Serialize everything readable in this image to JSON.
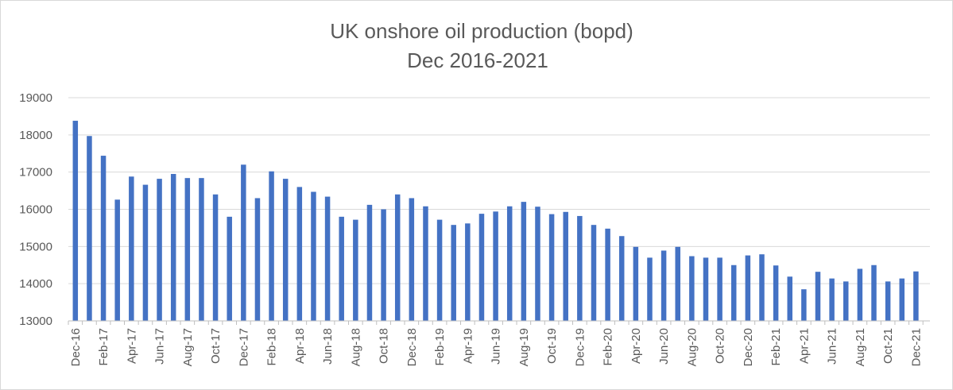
{
  "chart_data": {
    "type": "bar",
    "title": "UK onshore oil production (bopd)",
    "subtitle": "Dec 2016-2021",
    "ylim": [
      13000,
      19000
    ],
    "yticks": [
      13000,
      14000,
      15000,
      16000,
      17000,
      18000,
      19000
    ],
    "grid": true,
    "colors": {
      "bar": "#4472c4"
    },
    "categories": [
      "Dec-16",
      "Jan-17",
      "Feb-17",
      "Mar-17",
      "Apr-17",
      "May-17",
      "Jun-17",
      "Jul-17",
      "Aug-17",
      "Sep-17",
      "Oct-17",
      "Nov-17",
      "Dec-17",
      "Jan-18",
      "Feb-18",
      "Mar-18",
      "Apr-18",
      "May-18",
      "Jun-18",
      "Jul-18",
      "Aug-18",
      "Sep-18",
      "Oct-18",
      "Nov-18",
      "Dec-18",
      "Jan-19",
      "Feb-19",
      "Mar-19",
      "Apr-19",
      "May-19",
      "Jun-19",
      "Jul-19",
      "Aug-19",
      "Sep-19",
      "Oct-19",
      "Nov-19",
      "Dec-19",
      "Jan-20",
      "Feb-20",
      "Mar-20",
      "Apr-20",
      "May-20",
      "Jun-20",
      "Jul-20",
      "Aug-20",
      "Sep-20",
      "Oct-20",
      "Nov-20",
      "Dec-20",
      "Jan-21",
      "Feb-21",
      "Mar-21",
      "Apr-21",
      "May-21",
      "Jun-21",
      "Jul-21",
      "Aug-21",
      "Sep-21",
      "Oct-21",
      "Nov-21",
      "Dec-21"
    ],
    "shown_tick_labels": [
      "Dec-16",
      "Feb-17",
      "Apr-17",
      "Jun-17",
      "Aug-17",
      "Oct-17",
      "Dec-17",
      "Feb-18",
      "Apr-18",
      "Jun-18",
      "Aug-18",
      "Oct-18",
      "Dec-18",
      "Feb-19",
      "Apr-19",
      "Jun-19",
      "Aug-19",
      "Oct-19",
      "Dec-19",
      "Feb-20",
      "Apr-20",
      "Jun-20",
      "Aug-20",
      "Oct-20",
      "Dec-20",
      "Feb-21",
      "Apr-21",
      "Jun-21",
      "Aug-21",
      "Oct-21",
      "Dec-21"
    ],
    "values": [
      18380,
      17970,
      17440,
      16260,
      16880,
      16660,
      16820,
      16950,
      16840,
      16840,
      16400,
      15800,
      17200,
      16300,
      17020,
      16820,
      16600,
      16470,
      16340,
      15800,
      15720,
      16120,
      16000,
      16400,
      16300,
      16080,
      15720,
      15580,
      15620,
      15880,
      15940,
      16080,
      16200,
      16070,
      15870,
      15930,
      15820,
      15580,
      15480,
      15280,
      14990,
      14700,
      14890,
      14990,
      14740,
      14700,
      14700,
      14500,
      14760,
      14790,
      14490,
      14190,
      13850,
      14320,
      14140,
      14060,
      14400,
      14500,
      14060,
      14140,
      14330
    ]
  }
}
